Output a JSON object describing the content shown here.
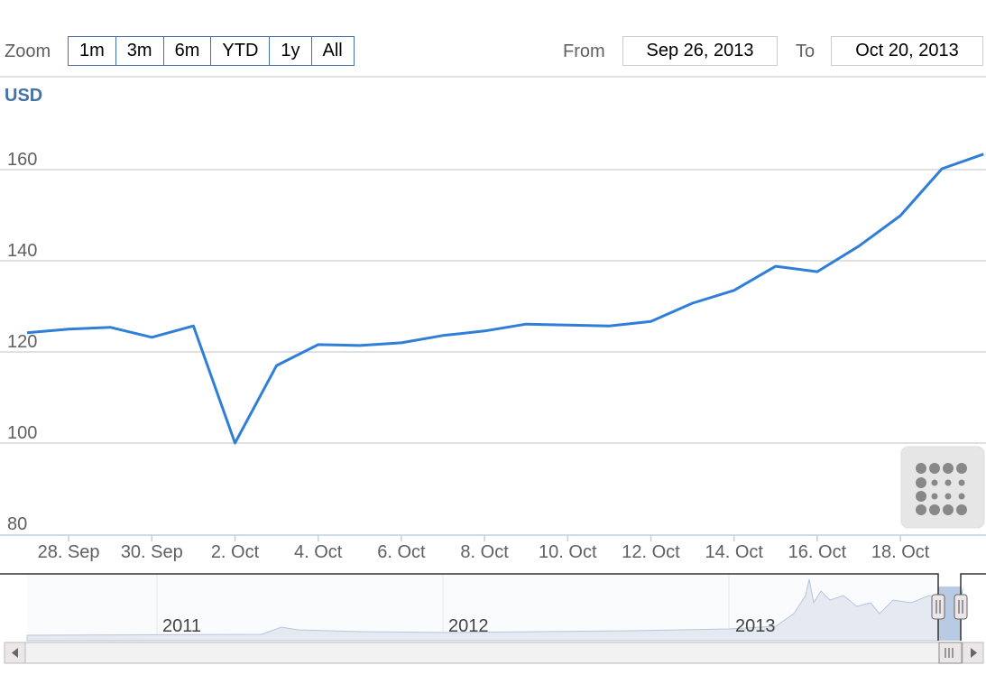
{
  "chart_data": {
    "type": "line",
    "zoom_label": "Zoom",
    "zoom_buttons": [
      "1m",
      "3m",
      "6m",
      "YTD",
      "1y",
      "All"
    ],
    "from_label": "From",
    "from": "Sep 26, 2013",
    "to_label": "To",
    "to": "Oct 20, 2013",
    "y_label": "USD",
    "categories": [
      null,
      "28. Sep",
      null,
      "30. Sep",
      null,
      "2. Oct",
      null,
      "4. Oct",
      null,
      "6. Oct",
      null,
      "8. Oct",
      null,
      "10. Oct",
      null,
      "12. Oct",
      null,
      "14. Oct",
      null,
      "16. Oct",
      null,
      "18. Oct",
      null,
      null
    ],
    "values": [
      124.2,
      125.0,
      125.4,
      123.2,
      125.7,
      100,
      117.0,
      121.6,
      121.4,
      122.0,
      123.6,
      124.6,
      126.1,
      125.9,
      125.7,
      126.7,
      130.7,
      133.5,
      138.8,
      137.6,
      143.2,
      149.9,
      160.2,
      163.4
    ],
    "color": "#2f7ed8",
    "ylim": [
      80,
      180
    ],
    "yticks": [
      80,
      100,
      120,
      140,
      160
    ],
    "grid": true,
    "navigator_labels": [
      "2011",
      "2012",
      "2013"
    ]
  }
}
